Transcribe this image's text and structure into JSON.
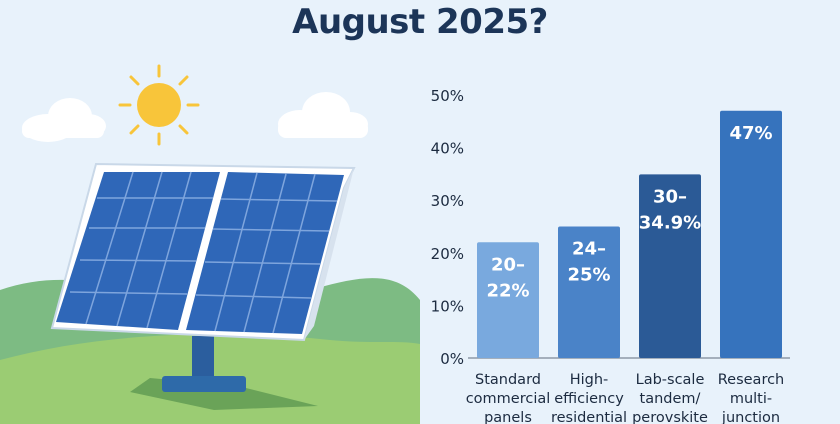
{
  "title": "August 2025?",
  "chart_data": {
    "type": "bar",
    "title": "August 2025?",
    "categories": [
      [
        "Standard",
        "commercial",
        "panels"
      ],
      [
        "High-",
        "efficiency",
        "residential"
      ],
      [
        "Lab-scale",
        "tandem/",
        "perovskite"
      ],
      [
        "Research",
        "multi-",
        "junction"
      ]
    ],
    "values": [
      22,
      25,
      34.9,
      47
    ],
    "value_labels": [
      [
        "20–",
        "22%"
      ],
      [
        "24–",
        "25%"
      ],
      [
        "30–",
        "34.9%"
      ],
      [
        "47%"
      ]
    ],
    "bar_colors": [
      "#79a9de",
      "#4a83c8",
      "#2b5a96",
      "#3673bd"
    ],
    "ylim": [
      0,
      50
    ],
    "yticks": [
      "0%",
      "10%",
      "20%",
      "30%",
      "40%",
      "50%"
    ],
    "grid": false
  },
  "illustration": {
    "colors": {
      "sky": "#e8f2fb",
      "sun": "#f8c53a",
      "hill_back": "#7dbb83",
      "hill_front": "#9bcc73",
      "panel": "#2f67b8",
      "frame": "#ffffff",
      "post": "#2b5e9e"
    }
  }
}
